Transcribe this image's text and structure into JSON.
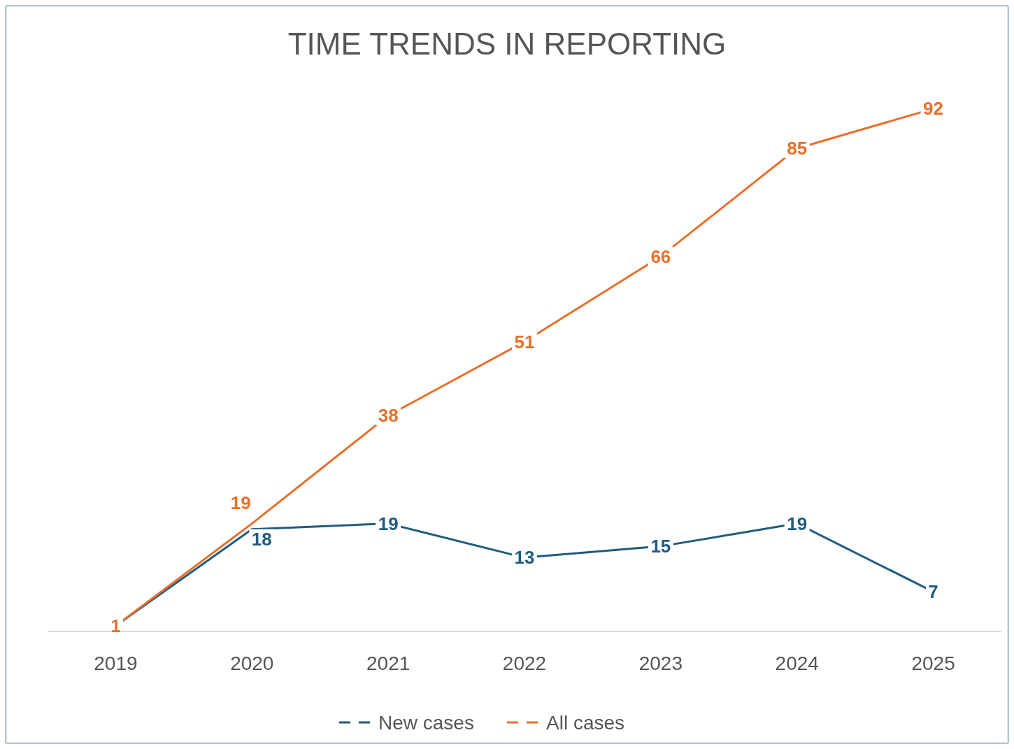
{
  "chart_data": {
    "type": "line",
    "title": "TIME TRENDS IN REPORTING",
    "categories": [
      "2019",
      "2020",
      "2021",
      "2022",
      "2023",
      "2024",
      "2025"
    ],
    "series": [
      {
        "name": "New cases",
        "color": "#1f5c80",
        "values": [
          1,
          18,
          19,
          13,
          15,
          19,
          7
        ],
        "value_labels": [
          null,
          "18",
          "19",
          "13",
          "15",
          "19",
          "7"
        ]
      },
      {
        "name": "All cases",
        "color": "#e8702a",
        "values": [
          1,
          19,
          38,
          51,
          66,
          85,
          92
        ],
        "value_labels": [
          "1",
          "19",
          "38",
          "51",
          "66",
          "85",
          "92"
        ]
      }
    ],
    "legend": "bottom",
    "marker": "none",
    "line_style": "solid"
  }
}
